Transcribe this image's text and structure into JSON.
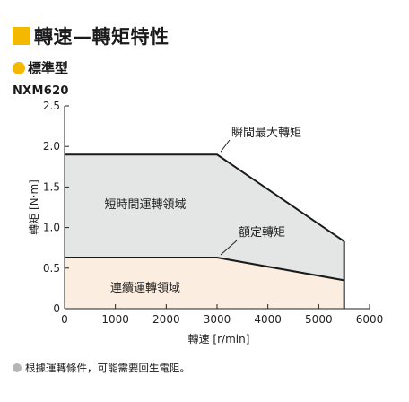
{
  "header": {
    "title": "轉速—轉矩特性"
  },
  "subheader": {
    "title": "標準型"
  },
  "model": "NXM620",
  "note": "根據運轉條件，可能需要回生電阻。",
  "colors": {
    "accent_square": "#f5b800",
    "accent_dot": "#f5b800",
    "note_dot": "#b5b5b5",
    "region_short": "#e4e6e6",
    "region_continuous": "#fbeee0",
    "line": "#1a1a1a"
  },
  "chart_data": {
    "type": "area",
    "xlabel": "轉速 [r/min]",
    "ylabel": "轉矩 [N·m]",
    "xlim": [
      0,
      6000
    ],
    "ylim": [
      0,
      2.5
    ],
    "x_ticks": [
      "0",
      "1000",
      "2000",
      "3000",
      "4000",
      "5000",
      "6000"
    ],
    "y_ticks": [
      "0",
      "0.5",
      "1.0",
      "1.5",
      "2.0",
      "2.5"
    ],
    "series": [
      {
        "name": "瞬間最大轉矩",
        "x": [
          0,
          3000,
          5500,
          5500
        ],
        "y": [
          1.9,
          1.9,
          0.83,
          0
        ]
      },
      {
        "name": "額定轉矩",
        "x": [
          0,
          3000,
          5500,
          5500
        ],
        "y": [
          0.63,
          0.63,
          0.35,
          0
        ]
      }
    ],
    "regions": [
      {
        "label": "短時間運轉領域"
      },
      {
        "label": "連續運轉領域"
      }
    ]
  }
}
